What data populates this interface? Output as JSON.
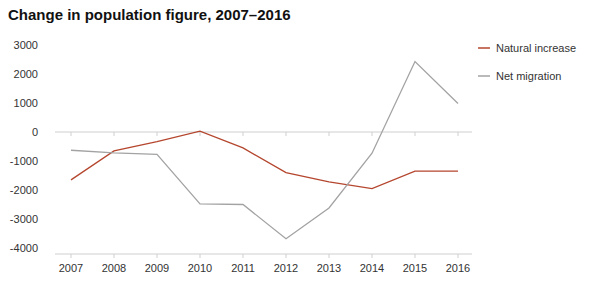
{
  "chart_data": {
    "type": "line",
    "title": "Change in population figure, 2007–2016",
    "categories": [
      "2007",
      "2008",
      "2009",
      "2010",
      "2011",
      "2012",
      "2013",
      "2014",
      "2015",
      "2016"
    ],
    "series": [
      {
        "name": "Natural increase",
        "color": "#b5462e",
        "values": [
          -1650,
          -650,
          -330,
          30,
          -550,
          -1400,
          -1720,
          -1950,
          -1350,
          -1350
        ]
      },
      {
        "name": "Net migration",
        "color": "#a3a3a3",
        "values": [
          -630,
          -720,
          -770,
          -2480,
          -2500,
          -3680,
          -2620,
          -730,
          2430,
          980
        ]
      }
    ],
    "ylim": [
      -4000,
      3000
    ],
    "yticks": [
      -4000,
      -3000,
      -2000,
      -1000,
      0,
      1000,
      2000,
      3000
    ],
    "grid": false,
    "legend": "right"
  }
}
